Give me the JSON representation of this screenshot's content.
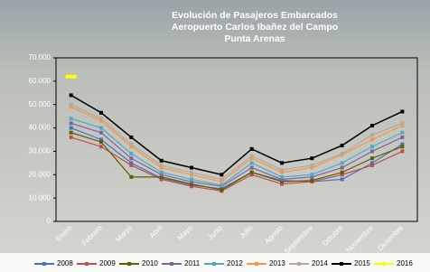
{
  "chart_data": {
    "type": "line",
    "title": [
      "Evolución de Pasajeros Embarcados",
      "Aeropuerto  Carlos Ibañez del Campo",
      "Punta Arenas"
    ],
    "categories": [
      "Enero",
      "Febrero",
      "Marzo",
      "Abril",
      "Mayo",
      "Junio",
      "Julio",
      "Agosto",
      "Septiembre",
      "Octubre",
      "Noviembre",
      "Diciembre"
    ],
    "ylim": [
      0,
      70000
    ],
    "yticks": [
      0,
      {
        "value": 10000,
        "label": "10.000"
      },
      {
        "value": 20000,
        "label": "20.000"
      },
      {
        "value": 30000,
        "label": "30.000"
      },
      {
        "value": 40000,
        "label": "40.000"
      },
      {
        "value": 50000,
        "label": "50.000"
      },
      {
        "value": 60000,
        "label": "60.000"
      },
      {
        "value": 70000,
        "label": "70.000"
      }
    ],
    "series": [
      {
        "name": "2008",
        "color": "#4472c4",
        "values": [
          40000,
          35000,
          25000,
          18500,
          15500,
          14000,
          21000,
          17500,
          17000,
          18000,
          25000,
          33000
        ]
      },
      {
        "name": "2009",
        "color": "#c0504d",
        "values": [
          36000,
          32000,
          24000,
          18000,
          15000,
          13000,
          20000,
          16000,
          17000,
          20000,
          24000,
          30000
        ]
      },
      {
        "name": "2010",
        "color": "#5f5f00",
        "values": [
          38000,
          34000,
          19000,
          19000,
          16000,
          13500,
          21000,
          17000,
          17500,
          21000,
          27000,
          32000
        ]
      },
      {
        "name": "2011",
        "color": "#8064a2",
        "values": [
          42000,
          38000,
          27000,
          20000,
          17000,
          15000,
          23000,
          18000,
          19000,
          23000,
          30000,
          36000
        ]
      },
      {
        "name": "2012",
        "color": "#4bacc6",
        "values": [
          44000,
          40000,
          29000,
          21000,
          18000,
          15500,
          25000,
          19000,
          20000,
          25000,
          32000,
          38000
        ]
      },
      {
        "name": "2013",
        "color": "#f79646",
        "values": [
          49000,
          43000,
          32000,
          23000,
          20000,
          17000,
          27000,
          21000,
          23000,
          28500,
          35000,
          41000
        ]
      },
      {
        "name": "2014",
        "color": "#b7a89a",
        "values": [
          50000,
          44000,
          33000,
          24000,
          21000,
          18000,
          28000,
          22000,
          24000,
          29000,
          37000,
          42000
        ]
      },
      {
        "name": "2015",
        "color": "#000000",
        "values": [
          54000,
          46500,
          36000,
          26000,
          23000,
          20000,
          31000,
          25000,
          27000,
          32500,
          41000,
          47000
        ]
      },
      {
        "name": "2016",
        "color": "#ffff00",
        "values": [
          62000,
          null,
          null,
          null,
          null,
          null,
          null,
          null,
          null,
          null,
          null,
          null
        ]
      }
    ]
  }
}
